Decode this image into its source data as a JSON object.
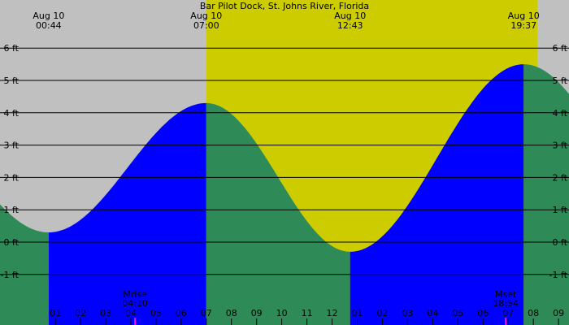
{
  "chart_data": {
    "type": "area",
    "title": "Bar Pilot Dock, St. Johns River, Florida",
    "y_unit": "ft",
    "ylim": [
      -2,
      7
    ],
    "y_ticks": [
      {
        "value": 6,
        "label": "6 ft"
      },
      {
        "value": 5,
        "label": "5 ft"
      },
      {
        "value": 4,
        "label": "4 ft"
      },
      {
        "value": 3,
        "label": "3 ft"
      },
      {
        "value": 2,
        "label": "2 ft"
      },
      {
        "value": 1,
        "label": "1 ft"
      },
      {
        "value": 0,
        "label": "0 ft"
      },
      {
        "value": -1,
        "label": "-1 ft"
      }
    ],
    "x_range_hours": [
      -13.0,
      10.3
    ],
    "hour_labels": [
      {
        "hour": -13,
        "label": "11"
      },
      {
        "hour": -12,
        "label": "12"
      },
      {
        "hour": 1,
        "label": "01"
      },
      {
        "hour": 2,
        "label": "02"
      },
      {
        "hour": 3,
        "label": "03"
      },
      {
        "hour": 4,
        "label": "04"
      },
      {
        "hour": 5,
        "label": "05"
      },
      {
        "hour": 6,
        "label": "06"
      },
      {
        "hour": 7,
        "label": "07"
      },
      {
        "hour": 8,
        "label": "08"
      },
      {
        "hour": 9,
        "label": "09"
      },
      {
        "hour": 10,
        "label": "10"
      },
      {
        "hour": 11,
        "label": "11"
      },
      {
        "hour": 12,
        "label": "12"
      },
      {
        "hour": 13,
        "label": "01"
      },
      {
        "hour": 14,
        "label": "02"
      },
      {
        "hour": 15,
        "label": "03"
      },
      {
        "hour": 16,
        "label": "04"
      },
      {
        "hour": 17,
        "label": "05"
      },
      {
        "hour": 18,
        "label": "06"
      },
      {
        "hour": 19,
        "label": "07"
      },
      {
        "hour": 20,
        "label": "08"
      },
      {
        "hour": 21,
        "label": "09"
      }
    ],
    "tide_extremes": [
      {
        "date": "Aug 10",
        "time": "00:44",
        "type": "low",
        "height": 0.3
      },
      {
        "date": "Aug 10",
        "time": "07:00",
        "type": "high",
        "height": 4.3
      },
      {
        "date": "Aug 10",
        "time": "12:43",
        "type": "low",
        "height": -0.3
      },
      {
        "date": "Aug 10",
        "time": "19:37",
        "type": "high",
        "height": 5.5
      }
    ],
    "daylight": {
      "start": "07:00",
      "end": "20:10"
    },
    "moon_events": [
      {
        "label": "Mrise",
        "time": "04:10"
      },
      {
        "label": "Mset",
        "time": "18:54"
      }
    ],
    "colors": {
      "night": "#c0c0c0",
      "day": "#cccc00",
      "rising": "#0000ff",
      "falling": "#2e8b57",
      "moon_marker": "#ff00ff"
    }
  }
}
